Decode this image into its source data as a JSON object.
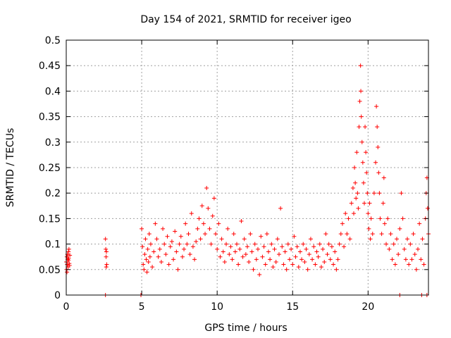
{
  "chart_data": {
    "type": "scatter",
    "title": "Day 154 of 2021, SRMTID for receiver igeo",
    "xlabel": "GPS time / hours",
    "ylabel": "SRMTID / TECUs",
    "xlim": [
      0,
      24
    ],
    "ylim": [
      0,
      0.5
    ],
    "xticks": [
      0,
      5,
      10,
      15,
      20
    ],
    "xtick_labels": [
      "0",
      "5",
      "10",
      "15",
      "20"
    ],
    "yticks": [
      0,
      0.05,
      0.1,
      0.15,
      0.2,
      0.25,
      0.3,
      0.35,
      0.4,
      0.45,
      0.5
    ],
    "ytick_labels": [
      "0",
      "0.05",
      "0.1",
      "0.15",
      "0.2",
      "0.25",
      "0.3",
      "0.35",
      "0.4",
      "0.45",
      "0.5"
    ],
    "grid": true,
    "marker": "+",
    "color": "#ff0000",
    "series": [
      {
        "name": "SRMTID",
        "points": [
          [
            0.0,
            0.065
          ],
          [
            0.02,
            0.05
          ],
          [
            0.04,
            0.075
          ],
          [
            0.06,
            0.06
          ],
          [
            0.08,
            0.08
          ],
          [
            0.1,
            0.07
          ],
          [
            0.12,
            0.055
          ],
          [
            0.14,
            0.068
          ],
          [
            0.16,
            0.072
          ],
          [
            0.18,
            0.09
          ],
          [
            0.2,
            0.062
          ],
          [
            0.22,
            0.058
          ],
          [
            0.24,
            0.078
          ],
          [
            0.05,
            0.045
          ],
          [
            0.15,
            0.085
          ],
          [
            2.6,
            0.11
          ],
          [
            2.62,
            0.09
          ],
          [
            2.64,
            0.075
          ],
          [
            2.66,
            0.085
          ],
          [
            2.68,
            0.06
          ],
          [
            2.65,
            0.055
          ],
          [
            2.6,
            0.0
          ],
          [
            4.95,
            0.0
          ],
          [
            22.1,
            0.0
          ],
          [
            23.55,
            0.0
          ],
          [
            23.9,
            0.0
          ],
          [
            5.0,
            0.13
          ],
          [
            5.05,
            0.095
          ],
          [
            5.1,
            0.06
          ],
          [
            5.15,
            0.05
          ],
          [
            5.2,
            0.08
          ],
          [
            5.25,
            0.11
          ],
          [
            5.3,
            0.07
          ],
          [
            5.35,
            0.045
          ],
          [
            5.4,
            0.09
          ],
          [
            5.45,
            0.065
          ],
          [
            5.5,
            0.12
          ],
          [
            5.55,
            0.075
          ],
          [
            5.6,
            0.1
          ],
          [
            5.7,
            0.055
          ],
          [
            5.8,
            0.085
          ],
          [
            5.9,
            0.14
          ],
          [
            6.0,
            0.11
          ],
          [
            6.1,
            0.075
          ],
          [
            6.2,
            0.09
          ],
          [
            6.3,
            0.065
          ],
          [
            6.4,
            0.13
          ],
          [
            6.5,
            0.1
          ],
          [
            6.6,
            0.08
          ],
          [
            6.7,
            0.115
          ],
          [
            6.8,
            0.06
          ],
          [
            6.9,
            0.095
          ],
          [
            7.0,
            0.105
          ],
          [
            7.1,
            0.07
          ],
          [
            7.2,
            0.125
          ],
          [
            7.3,
            0.085
          ],
          [
            7.4,
            0.05
          ],
          [
            7.5,
            0.1
          ],
          [
            7.6,
            0.115
          ],
          [
            7.7,
            0.075
          ],
          [
            7.8,
            0.09
          ],
          [
            7.9,
            0.14
          ],
          [
            8.0,
            0.1
          ],
          [
            8.1,
            0.12
          ],
          [
            8.2,
            0.08
          ],
          [
            8.3,
            0.16
          ],
          [
            8.4,
            0.095
          ],
          [
            8.5,
            0.07
          ],
          [
            8.6,
            0.105
          ],
          [
            8.7,
            0.13
          ],
          [
            8.8,
            0.15
          ],
          [
            8.9,
            0.11
          ],
          [
            9.0,
            0.175
          ],
          [
            9.1,
            0.14
          ],
          [
            9.2,
            0.12
          ],
          [
            9.3,
            0.21
          ],
          [
            9.4,
            0.17
          ],
          [
            9.5,
            0.13
          ],
          [
            9.6,
            0.1
          ],
          [
            9.7,
            0.155
          ],
          [
            9.8,
            0.19
          ],
          [
            9.9,
            0.12
          ],
          [
            10.0,
            0.09
          ],
          [
            10.1,
            0.14
          ],
          [
            10.2,
            0.075
          ],
          [
            10.3,
            0.11
          ],
          [
            10.4,
            0.085
          ],
          [
            10.5,
            0.065
          ],
          [
            10.6,
            0.1
          ],
          [
            10.7,
            0.13
          ],
          [
            10.8,
            0.08
          ],
          [
            10.9,
            0.095
          ],
          [
            11.0,
            0.07
          ],
          [
            11.1,
            0.12
          ],
          [
            11.2,
            0.085
          ],
          [
            11.3,
            0.1
          ],
          [
            11.4,
            0.06
          ],
          [
            11.5,
            0.09
          ],
          [
            11.6,
            0.145
          ],
          [
            11.7,
            0.075
          ],
          [
            11.8,
            0.11
          ],
          [
            11.9,
            0.08
          ],
          [
            12.0,
            0.095
          ],
          [
            12.1,
            0.065
          ],
          [
            12.2,
            0.12
          ],
          [
            12.3,
            0.085
          ],
          [
            12.4,
            0.05
          ],
          [
            12.5,
            0.1
          ],
          [
            12.6,
            0.07
          ],
          [
            12.7,
            0.09
          ],
          [
            12.8,
            0.04
          ],
          [
            12.9,
            0.115
          ],
          [
            13.0,
            0.075
          ],
          [
            13.1,
            0.095
          ],
          [
            13.2,
            0.06
          ],
          [
            13.3,
            0.12
          ],
          [
            13.4,
            0.085
          ],
          [
            13.5,
            0.07
          ],
          [
            13.6,
            0.1
          ],
          [
            13.7,
            0.055
          ],
          [
            13.8,
            0.09
          ],
          [
            13.9,
            0.065
          ],
          [
            14.0,
            0.11
          ],
          [
            14.1,
            0.08
          ],
          [
            14.2,
            0.17
          ],
          [
            14.3,
            0.095
          ],
          [
            14.4,
            0.06
          ],
          [
            14.5,
            0.085
          ],
          [
            14.6,
            0.05
          ],
          [
            14.7,
            0.1
          ],
          [
            14.8,
            0.07
          ],
          [
            14.9,
            0.09
          ],
          [
            15.0,
            0.06
          ],
          [
            15.1,
            0.115
          ],
          [
            15.2,
            0.075
          ],
          [
            15.3,
            0.095
          ],
          [
            15.4,
            0.055
          ],
          [
            15.5,
            0.085
          ],
          [
            15.6,
            0.07
          ],
          [
            15.7,
            0.1
          ],
          [
            15.8,
            0.065
          ],
          [
            15.9,
            0.09
          ],
          [
            16.0,
            0.05
          ],
          [
            16.1,
            0.08
          ],
          [
            16.2,
            0.11
          ],
          [
            16.3,
            0.07
          ],
          [
            16.4,
            0.095
          ],
          [
            16.5,
            0.06
          ],
          [
            16.6,
            0.085
          ],
          [
            16.7,
            0.075
          ],
          [
            16.8,
            0.1
          ],
          [
            16.9,
            0.055
          ],
          [
            17.0,
            0.09
          ],
          [
            17.1,
            0.065
          ],
          [
            17.2,
            0.12
          ],
          [
            17.3,
            0.08
          ],
          [
            17.4,
            0.1
          ],
          [
            17.5,
            0.07
          ],
          [
            17.6,
            0.095
          ],
          [
            17.7,
            0.06
          ],
          [
            17.8,
            0.085
          ],
          [
            17.9,
            0.05
          ],
          [
            18.0,
            0.07
          ],
          [
            18.1,
            0.1
          ],
          [
            18.2,
            0.12
          ],
          [
            18.3,
            0.14
          ],
          [
            18.4,
            0.095
          ],
          [
            18.5,
            0.16
          ],
          [
            18.6,
            0.12
          ],
          [
            18.7,
            0.15
          ],
          [
            18.8,
            0.11
          ],
          [
            18.9,
            0.18
          ],
          [
            19.0,
            0.21
          ],
          [
            19.05,
            0.16
          ],
          [
            19.1,
            0.25
          ],
          [
            19.15,
            0.22
          ],
          [
            19.2,
            0.19
          ],
          [
            19.25,
            0.28
          ],
          [
            19.3,
            0.2
          ],
          [
            19.35,
            0.17
          ],
          [
            19.4,
            0.33
          ],
          [
            19.45,
            0.38
          ],
          [
            19.5,
            0.45
          ],
          [
            19.52,
            0.4
          ],
          [
            19.55,
            0.35
          ],
          [
            19.6,
            0.3
          ],
          [
            19.65,
            0.26
          ],
          [
            19.7,
            0.22
          ],
          [
            19.75,
            0.18
          ],
          [
            19.8,
            0.33
          ],
          [
            19.85,
            0.28
          ],
          [
            19.9,
            0.24
          ],
          [
            19.95,
            0.2
          ],
          [
            20.0,
            0.16
          ],
          [
            20.05,
            0.13
          ],
          [
            20.1,
            0.18
          ],
          [
            20.15,
            0.11
          ],
          [
            20.2,
            0.15
          ],
          [
            20.3,
            0.12
          ],
          [
            20.4,
            0.2
          ],
          [
            20.5,
            0.26
          ],
          [
            20.55,
            0.37
          ],
          [
            20.6,
            0.33
          ],
          [
            20.65,
            0.29
          ],
          [
            20.7,
            0.24
          ],
          [
            20.75,
            0.2
          ],
          [
            20.8,
            0.15
          ],
          [
            20.9,
            0.12
          ],
          [
            21.0,
            0.18
          ],
          [
            21.05,
            0.23
          ],
          [
            21.1,
            0.14
          ],
          [
            21.2,
            0.1
          ],
          [
            21.3,
            0.15
          ],
          [
            21.4,
            0.09
          ],
          [
            21.5,
            0.12
          ],
          [
            21.6,
            0.07
          ],
          [
            21.7,
            0.1
          ],
          [
            21.8,
            0.06
          ],
          [
            21.9,
            0.11
          ],
          [
            22.0,
            0.08
          ],
          [
            22.1,
            0.13
          ],
          [
            22.2,
            0.2
          ],
          [
            22.3,
            0.15
          ],
          [
            22.4,
            0.09
          ],
          [
            22.5,
            0.07
          ],
          [
            22.6,
            0.11
          ],
          [
            22.7,
            0.06
          ],
          [
            22.8,
            0.1
          ],
          [
            22.9,
            0.07
          ],
          [
            23.0,
            0.12
          ],
          [
            23.1,
            0.08
          ],
          [
            23.2,
            0.05
          ],
          [
            23.3,
            0.09
          ],
          [
            23.4,
            0.14
          ],
          [
            23.5,
            0.07
          ],
          [
            23.6,
            0.11
          ],
          [
            23.7,
            0.06
          ],
          [
            23.8,
            0.15
          ],
          [
            23.85,
            0.2
          ],
          [
            23.9,
            0.23
          ],
          [
            23.95,
            0.17
          ],
          [
            24.0,
            0.12
          ]
        ]
      }
    ]
  }
}
